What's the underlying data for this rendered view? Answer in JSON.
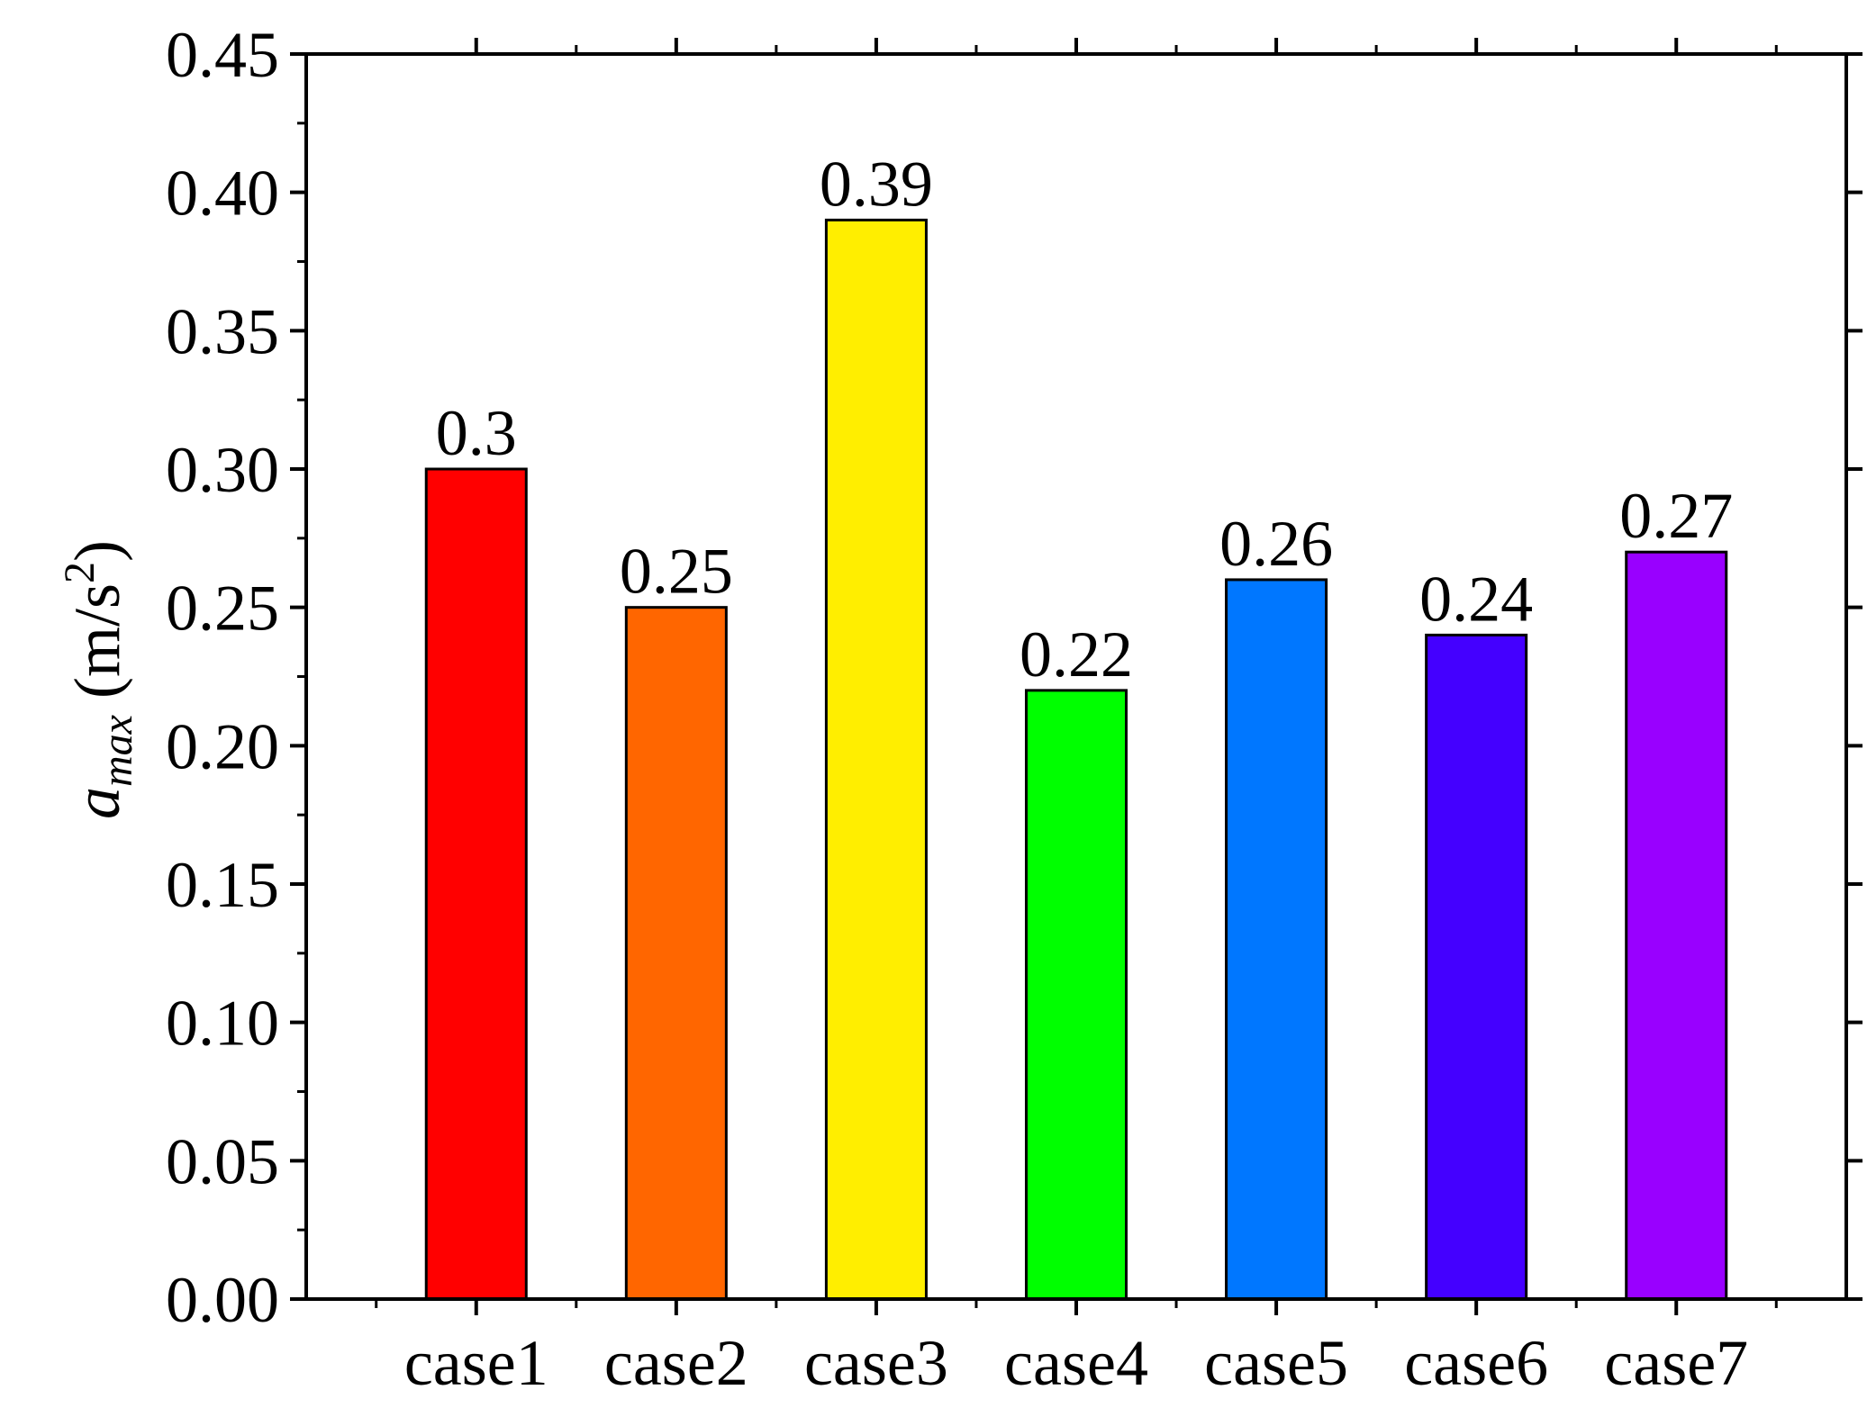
{
  "chart_data": {
    "type": "bar",
    "categories": [
      "case1",
      "case2",
      "case3",
      "case4",
      "case5",
      "case6",
      "case7"
    ],
    "values": [
      0.3,
      0.25,
      0.39,
      0.22,
      0.26,
      0.24,
      0.27
    ],
    "data_labels": [
      "0.3",
      "0.25",
      "0.39",
      "0.22",
      "0.26",
      "0.24",
      "0.27"
    ],
    "colors": [
      "#ff0000",
      "#ff6600",
      "#ffee00",
      "#00ff00",
      "#0077ff",
      "#4400ff",
      "#9900ff"
    ],
    "ylim": [
      0,
      0.45
    ],
    "yticks": [
      "0.00",
      "0.05",
      "0.10",
      "0.15",
      "0.20",
      "0.25",
      "0.30",
      "0.35",
      "0.40",
      "0.45"
    ],
    "ylabel": {
      "symbol": "a",
      "subscript": "max",
      "unit_open": " (m/s",
      "unit_sup": "2",
      "unit_close": ")"
    },
    "xlabel": "",
    "title": "",
    "grid": false
  }
}
